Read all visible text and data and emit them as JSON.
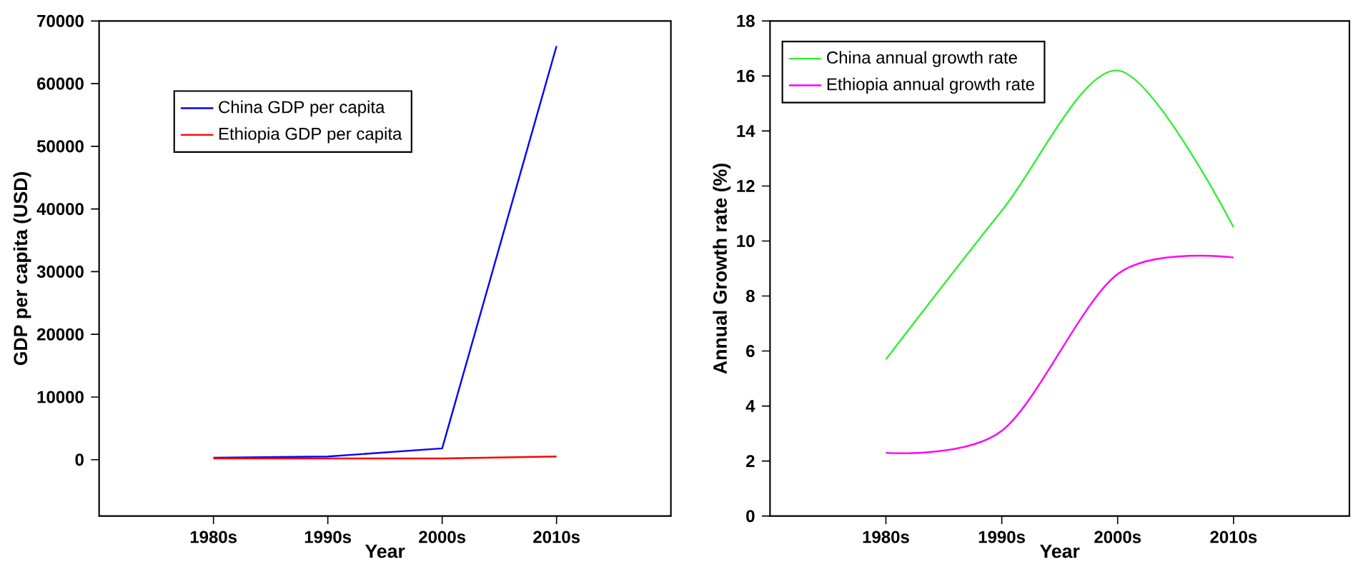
{
  "chart_data": [
    {
      "type": "line",
      "xlabel": "Year",
      "ylabel": "GDP  per  capita  (USD)",
      "categories": [
        "1980s",
        "1990s",
        "2000s",
        "2010s"
      ],
      "series": [
        {
          "name": "China GDP per capita",
          "color": "#0000ff",
          "values": [
            300,
            500,
            1800,
            66000
          ]
        },
        {
          "name": "Ethiopia GDP per capita",
          "color": "#ff0000",
          "values": [
            200,
            200,
            200,
            500
          ]
        }
      ],
      "ylim": [
        -9000,
        70000
      ],
      "yticks": [
        0,
        10000,
        20000,
        30000,
        40000,
        50000,
        60000,
        70000
      ],
      "legend": "top left",
      "grid": false,
      "marker": "none",
      "line_style": "solid"
    },
    {
      "type": "line",
      "xlabel": "Year",
      "ylabel": "Annual  Growth  rate (%)",
      "categories": [
        "1980s",
        "1990s",
        "2000s",
        "2010s"
      ],
      "series": [
        {
          "name": "China annual growth rate",
          "color": "#33ee33",
          "values": [
            5.7,
            11.1,
            16.2,
            10.5
          ]
        },
        {
          "name": "Ethiopia annual growth rate",
          "color": "#ff00ff",
          "values": [
            2.3,
            3.1,
            8.8,
            9.4
          ]
        }
      ],
      "ylim": [
        0,
        18
      ],
      "yticks": [
        0,
        2,
        4,
        6,
        8,
        10,
        12,
        14,
        16,
        18
      ],
      "legend": "top left",
      "grid": false,
      "marker": "none",
      "line_style": "solid"
    }
  ]
}
